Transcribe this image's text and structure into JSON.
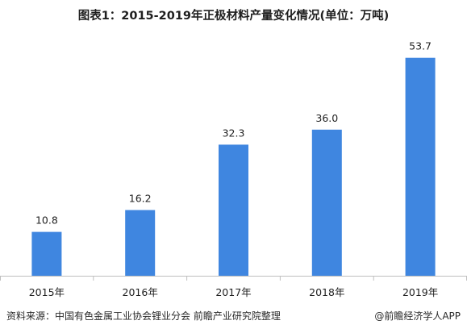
{
  "chart_data": {
    "type": "bar",
    "title": "图表1：2015-2019年正极材料产量变化情况(单位：万吨)",
    "categories": [
      "2015年",
      "2016年",
      "2017年",
      "2018年",
      "2019年"
    ],
    "values": [
      10.8,
      16.2,
      32.3,
      36.0,
      53.7
    ],
    "value_labels": [
      "10.8",
      "16.2",
      "32.3",
      "36.0",
      "53.7"
    ],
    "ylim": [
      0,
      60
    ],
    "bar_color": "#3f86e0",
    "grid": false,
    "legend": "none"
  },
  "footer": {
    "source": "资料来源：中国有色金属工业协会锂业分会 前瞻产业研究院整理",
    "credit": "@前瞻经济学人APP"
  }
}
